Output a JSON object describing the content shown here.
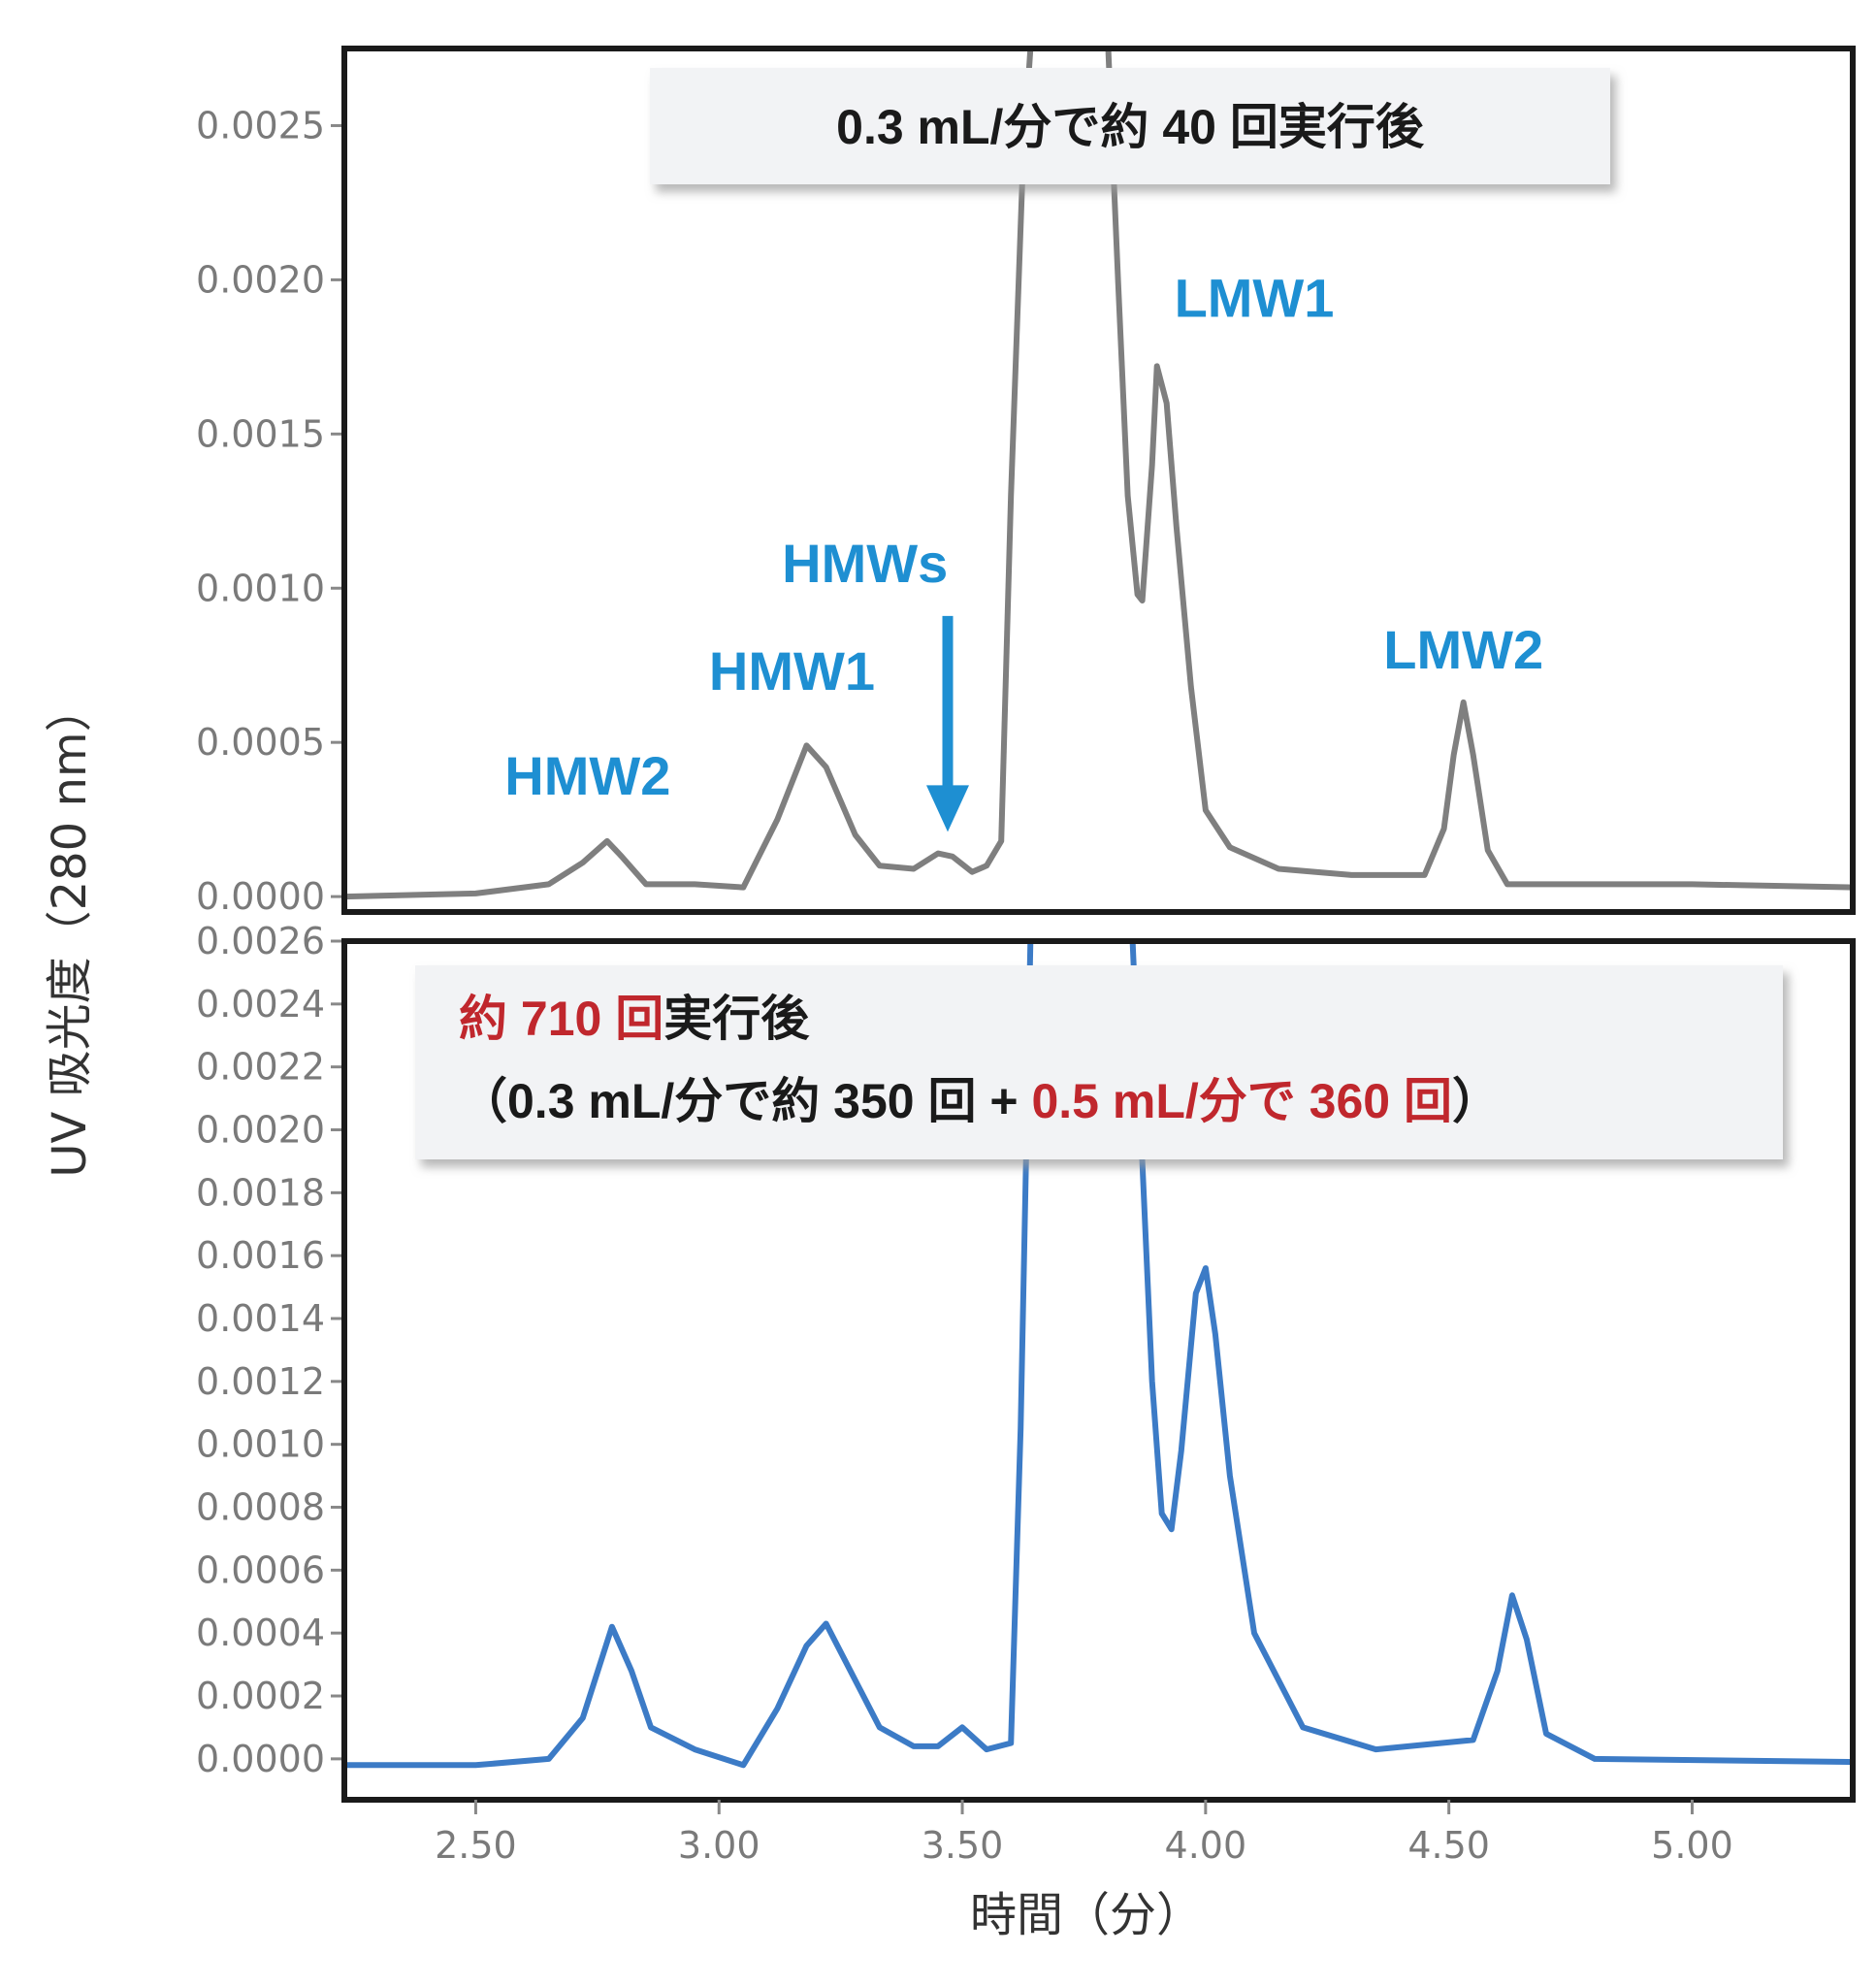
{
  "chart_data": {
    "type": "line",
    "xlabel": "時間（分）",
    "ylabel": "UV 吸光度（280 nm）",
    "xlim": [
      2.23,
      5.33
    ],
    "x_ticks": [
      "2.50",
      "3.00",
      "3.50",
      "4.00",
      "4.50",
      "5.00"
    ],
    "x_tick_values": [
      2.5,
      3.0,
      3.5,
      4.0,
      4.5,
      5.0
    ],
    "panels": [
      {
        "id": "top",
        "ylim": [
          -5e-05,
          0.00275
        ],
        "y_ticks": [
          "0.0000",
          "0.0005",
          "0.0010",
          "0.0015",
          "0.0020",
          "0.0025"
        ],
        "y_tick_values": [
          0,
          0.0005,
          0.001,
          0.0015,
          0.002,
          0.0025
        ],
        "color": "#7f7f7f",
        "annotation": [
          [
            {
              "text": "0.3 mL/分で約 40 回実行後",
              "color": "#1a1a1a"
            }
          ]
        ],
        "peak_labels": [
          {
            "text": "HMW2",
            "x": 2.73,
            "y": 0.00033
          },
          {
            "text": "HMW1",
            "x": 3.15,
            "y": 0.00067
          },
          {
            "text": "HMWs",
            "x": 3.3,
            "y": 0.00102
          },
          {
            "text": "LMW1",
            "x": 4.1,
            "y": 0.00188
          },
          {
            "text": "LMW2",
            "x": 4.53,
            "y": 0.00074
          }
        ],
        "arrow": {
          "x": 3.47,
          "y_from": 0.00091,
          "y_to": 0.00021
        },
        "series": {
          "name": "",
          "x": [
            2.23,
            2.5,
            2.65,
            2.72,
            2.77,
            2.8,
            2.85,
            2.95,
            3.05,
            3.12,
            3.18,
            3.22,
            3.28,
            3.33,
            3.4,
            3.45,
            3.48,
            3.52,
            3.55,
            3.58,
            3.6,
            3.625,
            3.64,
            3.8,
            3.82,
            3.84,
            3.86,
            3.87,
            3.89,
            3.9,
            3.92,
            3.94,
            3.97,
            4.0,
            4.05,
            4.15,
            4.3,
            4.45,
            4.49,
            4.51,
            4.53,
            4.55,
            4.58,
            4.62,
            4.7,
            5.0,
            5.33
          ],
          "y": [
            0.0,
            1e-05,
            4e-05,
            0.00011,
            0.00018,
            0.00013,
            4e-05,
            4e-05,
            3e-05,
            0.00025,
            0.00049,
            0.00042,
            0.0002,
            0.0001,
            9e-05,
            0.00014,
            0.00013,
            8e-05,
            0.0001,
            0.00018,
            0.0013,
            0.0024,
            0.00275,
            0.00275,
            0.002,
            0.0013,
            0.00098,
            0.00096,
            0.0014,
            0.00172,
            0.0016,
            0.0012,
            0.00068,
            0.00028,
            0.00016,
            9e-05,
            7e-05,
            7e-05,
            0.00022,
            0.00046,
            0.00063,
            0.00046,
            0.00015,
            4e-05,
            4e-05,
            4e-05,
            3e-05
          ]
        }
      },
      {
        "id": "bottom",
        "ylim": [
          -0.00013,
          0.0026
        ],
        "y_ticks": [
          "0.0000",
          "0.0002",
          "0.0004",
          "0.0006",
          "0.0008",
          "0.0010",
          "0.0012",
          "0.0014",
          "0.0016",
          "0.0018",
          "0.0020",
          "0.0022",
          "0.0024",
          "0.0026"
        ],
        "y_tick_values": [
          0,
          0.0002,
          0.0004,
          0.0006,
          0.0008,
          0.001,
          0.0012,
          0.0014,
          0.0016,
          0.0018,
          0.002,
          0.0022,
          0.0024,
          0.0026
        ],
        "color": "#3c7bc6",
        "annotation": [
          [
            {
              "text": "約 710 回",
              "color": "#c0272d"
            },
            {
              "text": "実行後",
              "color": "#1a1a1a"
            }
          ],
          [
            {
              "text": "（0.3 mL/分で約 350 回 + ",
              "color": "#1a1a1a"
            },
            {
              "text": "0.5 mL/分で 360 回",
              "color": "#c0272d"
            },
            {
              "text": "）",
              "color": "#1a1a1a"
            }
          ]
        ],
        "series": {
          "name": "",
          "x": [
            2.23,
            2.5,
            2.65,
            2.72,
            2.78,
            2.82,
            2.86,
            2.95,
            3.05,
            3.12,
            3.18,
            3.22,
            3.27,
            3.33,
            3.4,
            3.45,
            3.5,
            3.55,
            3.6,
            3.62,
            3.64,
            3.66,
            3.85,
            3.87,
            3.89,
            3.91,
            3.93,
            3.95,
            3.98,
            4.0,
            4.02,
            4.05,
            4.1,
            4.2,
            4.35,
            4.55,
            4.6,
            4.63,
            4.66,
            4.7,
            4.8,
            5.33
          ],
          "y": [
            -2e-05,
            -2e-05,
            0.0,
            0.00013,
            0.00042,
            0.00028,
            0.0001,
            3e-05,
            -2e-05,
            0.00016,
            0.00036,
            0.00043,
            0.00028,
            0.0001,
            4e-05,
            4e-05,
            0.0001,
            3e-05,
            5e-05,
            0.00105,
            0.0026,
            0.0026,
            0.0026,
            0.0019,
            0.0012,
            0.00078,
            0.00073,
            0.00098,
            0.00148,
            0.00156,
            0.00135,
            0.0009,
            0.0004,
            0.0001,
            3e-05,
            6e-05,
            0.00028,
            0.00052,
            0.00038,
            8e-05,
            0.0,
            -1e-05
          ]
        }
      }
    ]
  }
}
